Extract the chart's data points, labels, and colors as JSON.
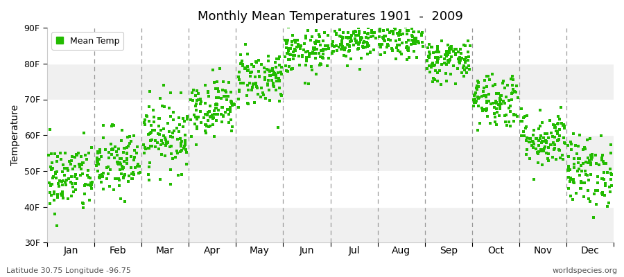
{
  "title": "Monthly Mean Temperatures 1901  -  2009",
  "ylabel": "Temperature",
  "subtitle_left": "Latitude 30.75 Longitude -96.75",
  "subtitle_right": "worldspecies.org",
  "legend_label": "Mean Temp",
  "dot_color": "#22bb00",
  "background_color": "#ffffff",
  "plot_bg_color": "#ffffff",
  "band_colors": [
    "#f0f0f0",
    "#ffffff"
  ],
  "ylim_min": 30,
  "ylim_max": 90,
  "ytick_labels": [
    "30F",
    "40F",
    "50F",
    "60F",
    "70F",
    "80F",
    "90F"
  ],
  "ytick_values": [
    30,
    40,
    50,
    60,
    70,
    80,
    90
  ],
  "months": [
    "Jan",
    "Feb",
    "Mar",
    "Apr",
    "May",
    "Jun",
    "Jul",
    "Aug",
    "Sep",
    "Oct",
    "Nov",
    "Dec"
  ],
  "month_means": [
    48,
    52,
    60,
    68,
    76,
    83,
    87,
    87,
    81,
    70,
    59,
    50
  ],
  "month_stds": [
    5,
    5,
    5,
    4,
    4,
    3,
    3,
    3,
    3,
    4,
    4,
    5
  ],
  "n_years": 109,
  "seed": 42
}
